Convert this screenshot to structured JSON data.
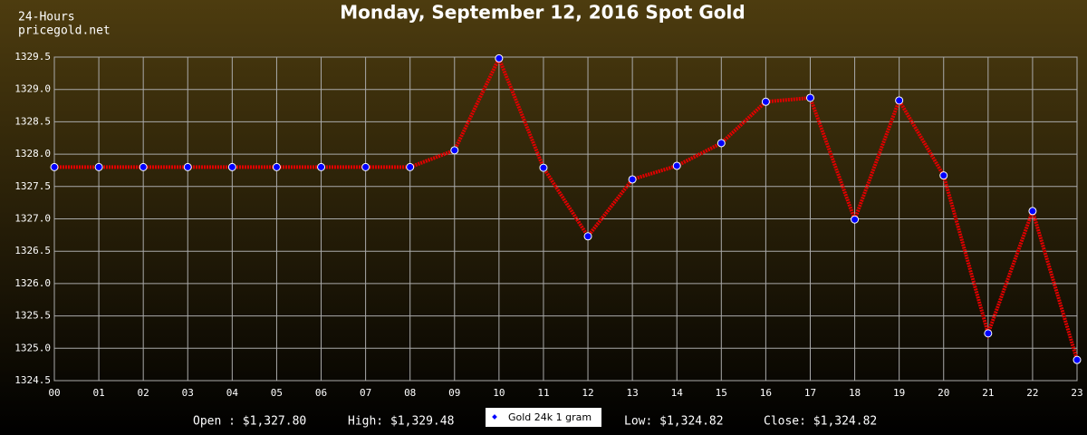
{
  "chart_data": {
    "type": "line",
    "title": "Monday, September 12, 2016 Spot Gold",
    "corner_text": [
      "24-Hours",
      "pricegold.net"
    ],
    "categories": [
      "00",
      "01",
      "02",
      "03",
      "04",
      "05",
      "06",
      "07",
      "08",
      "09",
      "10",
      "11",
      "12",
      "13",
      "14",
      "15",
      "16",
      "17",
      "18",
      "19",
      "20",
      "21",
      "22",
      "23"
    ],
    "series": [
      {
        "name": "Gold 24k 1 gram",
        "color": "#e00000",
        "marker_color": "#0000ff",
        "values": [
          1327.8,
          1327.8,
          1327.8,
          1327.8,
          1327.8,
          1327.8,
          1327.8,
          1327.8,
          1327.8,
          1328.06,
          1329.48,
          1327.79,
          1326.73,
          1327.61,
          1327.82,
          1328.17,
          1328.81,
          1328.87,
          1326.99,
          1328.83,
          1327.67,
          1325.23,
          1327.12,
          1324.82
        ]
      }
    ],
    "ylim": [
      1324.5,
      1329.5
    ],
    "yticks": [
      1324.5,
      {
        "value": 1325,
        "label": "1325.0"
      },
      1325.5,
      {
        "value": 1326,
        "label": "1326.0"
      },
      1326.5,
      {
        "value": 1327,
        "label": "1327.0"
      },
      1327.5,
      {
        "value": 1328,
        "label": "1328.0"
      },
      1328.5,
      {
        "value": 1329,
        "label": "1329.0"
      },
      1329.5
    ],
    "grid": true,
    "stats_left": [
      "Open : $1,327.80",
      "High: $1,329.48"
    ],
    "stats_right": [
      "Low: $1,324.82",
      "Close: $1,324.82"
    ]
  }
}
